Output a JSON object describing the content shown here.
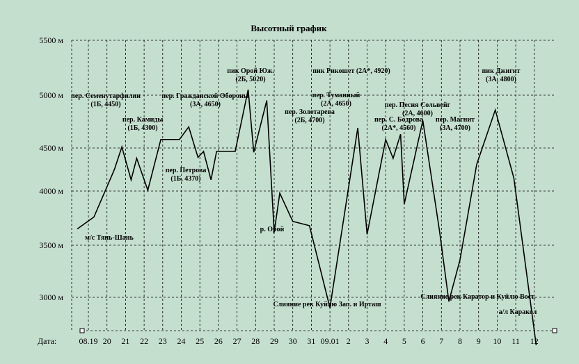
{
  "chart_data": {
    "type": "line",
    "title": "Высотный график",
    "xlabel": "Дата:",
    "ylabel": "",
    "x_ticks": [
      "08.19",
      "20",
      "21",
      "22",
      "23",
      "24",
      "25",
      "26",
      "27",
      "28",
      "29",
      "30",
      "31",
      "09.01",
      "2",
      "3",
      "4",
      "5",
      "6",
      "7",
      "8",
      "9",
      "10",
      "11",
      "12"
    ],
    "y_ticks": [
      "5500 м",
      "5000 м",
      "4500 м",
      "4000 м",
      "3500 м",
      "3000 м"
    ],
    "ylim": [
      2540,
      5500
    ],
    "grid": true,
    "series": [
      {
        "points": [
          [
            -0.6,
            3650
          ],
          [
            0.3,
            3760
          ],
          [
            1.4,
            4250
          ],
          [
            1.8,
            4510
          ],
          [
            2.3,
            4130
          ],
          [
            2.6,
            4380
          ],
          [
            3.2,
            4010
          ],
          [
            3.9,
            4580
          ],
          [
            4.9,
            4580
          ],
          [
            5.4,
            4700
          ],
          [
            5.9,
            4390
          ],
          [
            6.2,
            4460
          ],
          [
            6.6,
            4130
          ],
          [
            6.9,
            4460
          ],
          [
            7.9,
            4460
          ],
          [
            8.6,
            5050
          ],
          [
            8.9,
            4450
          ],
          [
            9.6,
            4950
          ],
          [
            10.0,
            3620
          ],
          [
            10.3,
            3980
          ],
          [
            11.0,
            3720
          ],
          [
            11.9,
            3680
          ],
          [
            13.0,
            2900
          ],
          [
            13.8,
            3810
          ],
          [
            14.5,
            4690
          ],
          [
            15.0,
            3600
          ],
          [
            16.0,
            4580
          ],
          [
            16.4,
            4380
          ],
          [
            16.8,
            4630
          ],
          [
            17.0,
            3880
          ],
          [
            18.0,
            4760
          ],
          [
            18.9,
            3630
          ],
          [
            19.4,
            2960
          ],
          [
            20.0,
            3360
          ],
          [
            20.9,
            4310
          ],
          [
            21.9,
            4860
          ],
          [
            22.9,
            4150
          ],
          [
            24.1,
            2540
          ]
        ]
      }
    ],
    "annotations": [
      {
        "lines": [
          "м/с Тянь-Шань"
        ]
      },
      {
        "lines": [
          "пер. Семенутарфилин",
          "(1Б, 4450)"
        ]
      },
      {
        "lines": [
          "пер. Камиды",
          "(1Б, 4300)"
        ]
      },
      {
        "lines": [
          "пер. Гражданской Обороны",
          "(3А, 4650)"
        ]
      },
      {
        "lines": [
          "пер. Петрова",
          "(1Б, 4370)"
        ]
      },
      {
        "lines": [
          "пик Орой Юж.",
          "(2Б, 5020)"
        ]
      },
      {
        "lines": [
          "пик Рикошет (2А*, 4920)"
        ]
      },
      {
        "lines": [
          "пер. Золотарева",
          "(2Б, 4700)"
        ]
      },
      {
        "lines": [
          "пер. Туманный",
          "(2А, 4650)"
        ]
      },
      {
        "lines": [
          "р. Орой"
        ]
      },
      {
        "lines": [
          "пер. С. Бодрова",
          "(2А*, 4560)"
        ]
      },
      {
        "lines": [
          "пер. Песня Сольвейг",
          "(2А, 4600)"
        ]
      },
      {
        "lines": [
          "пер. Магнит",
          "(3А, 4700)"
        ]
      },
      {
        "lines": [
          "пик Джигит",
          "(3А, 4800)"
        ]
      },
      {
        "lines": [
          "Слияние рек Куйлю Зап. и Ирташ"
        ]
      },
      {
        "lines": [
          "Слияние рек Каратор и Куйлю Вост."
        ]
      },
      {
        "lines": [
          "а/л Каракол"
        ]
      }
    ]
  }
}
